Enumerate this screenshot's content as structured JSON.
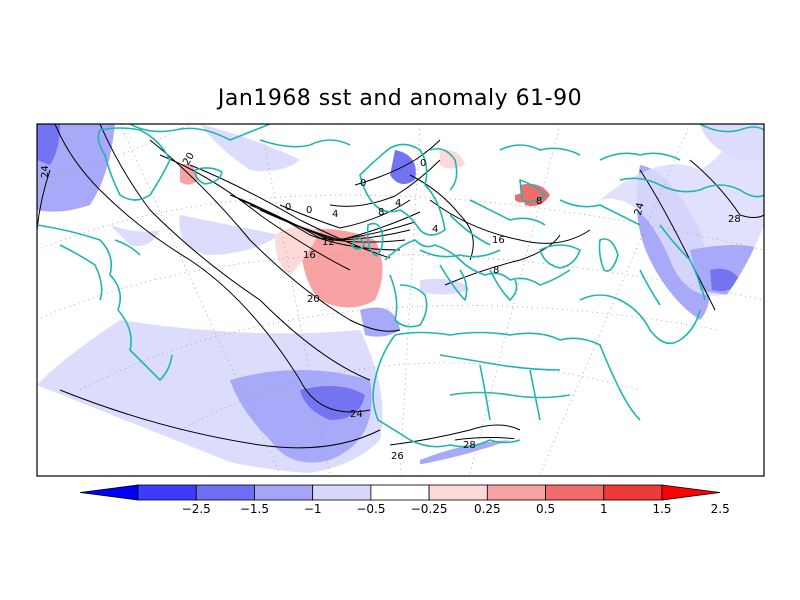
{
  "title": "Jan1968 sst and anomaly 61-90",
  "colors": {
    "coastline": "#1fb6b0",
    "contour": "#000000",
    "pos_light": "#fdd9d9",
    "pos_mid": "#f7a3a3",
    "neg_light": "#dcdcfd",
    "neg_mid": "#a9a9f9",
    "neg_dark": "#7474f2"
  },
  "colorbar": {
    "labels": [
      "-2.5",
      "-1.5",
      "-1",
      "-0.5",
      "-0.25",
      "0.25",
      "0.5",
      "1",
      "1.5",
      "2.5"
    ],
    "colors": [
      "#0000ff",
      "#3c3cff",
      "#6e6ef5",
      "#a5a5f7",
      "#d8d8fb",
      "#ffffff",
      "#fdd8d8",
      "#f7a3a3",
      "#f26c6c",
      "#f03a3a",
      "#ff0000"
    ]
  },
  "contour_labels": [
    "24",
    "20",
    "0",
    "0",
    "4",
    "8",
    "12",
    "16",
    "20",
    "24",
    "28",
    "26",
    "0",
    "0",
    "4",
    "4",
    "8",
    "16",
    "8",
    "24",
    "28"
  ]
}
